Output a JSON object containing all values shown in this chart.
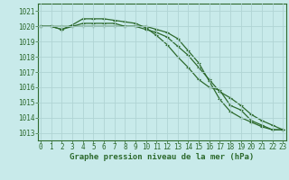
{
  "title": "Graphe pression niveau de la mer (hPa)",
  "bg_color": "#c8eaea",
  "grid_color": "#b0d4d4",
  "line_color": "#2d6a2d",
  "border_color": "#2d6a2d",
  "x_ticks": [
    0,
    1,
    2,
    3,
    4,
    5,
    6,
    7,
    8,
    9,
    10,
    11,
    12,
    13,
    14,
    15,
    16,
    17,
    18,
    19,
    20,
    21,
    22,
    23
  ],
  "y_ticks": [
    1013,
    1014,
    1015,
    1016,
    1017,
    1018,
    1019,
    1020,
    1021
  ],
  "ylim": [
    1012.5,
    1021.5
  ],
  "xlim": [
    -0.3,
    23.3
  ],
  "series": [
    [
      1020.0,
      1020.0,
      1019.8,
      1020.1,
      1020.5,
      1020.5,
      1020.5,
      1020.4,
      1020.3,
      1020.2,
      1019.9,
      1019.4,
      1018.8,
      1018.0,
      1017.3,
      1016.5,
      1016.0,
      1015.8,
      1014.8,
      1014.5,
      1013.8,
      1013.5,
      1013.2,
      1013.2
    ],
    [
      1020.0,
      1020.0,
      1019.8,
      1020.0,
      1020.2,
      1020.2,
      1020.2,
      1020.2,
      1020.0,
      1020.0,
      1020.0,
      1019.8,
      1019.6,
      1019.2,
      1018.4,
      1017.6,
      1016.4,
      1015.2,
      1014.4,
      1014.0,
      1013.7,
      1013.4,
      1013.2,
      1013.2
    ],
    [
      1020.0,
      1020.0,
      1020.0,
      1020.0,
      1020.0,
      1020.0,
      1020.0,
      1020.0,
      1020.0,
      1020.0,
      1019.8,
      1019.6,
      1019.3,
      1018.7,
      1018.1,
      1017.3,
      1016.5,
      1015.7,
      1015.3,
      1014.8,
      1014.2,
      1013.8,
      1013.5,
      1013.2
    ]
  ],
  "tick_fontsize": 5.5,
  "label_fontsize": 6.5,
  "linewidth": 0.9,
  "markersize": 2.5
}
